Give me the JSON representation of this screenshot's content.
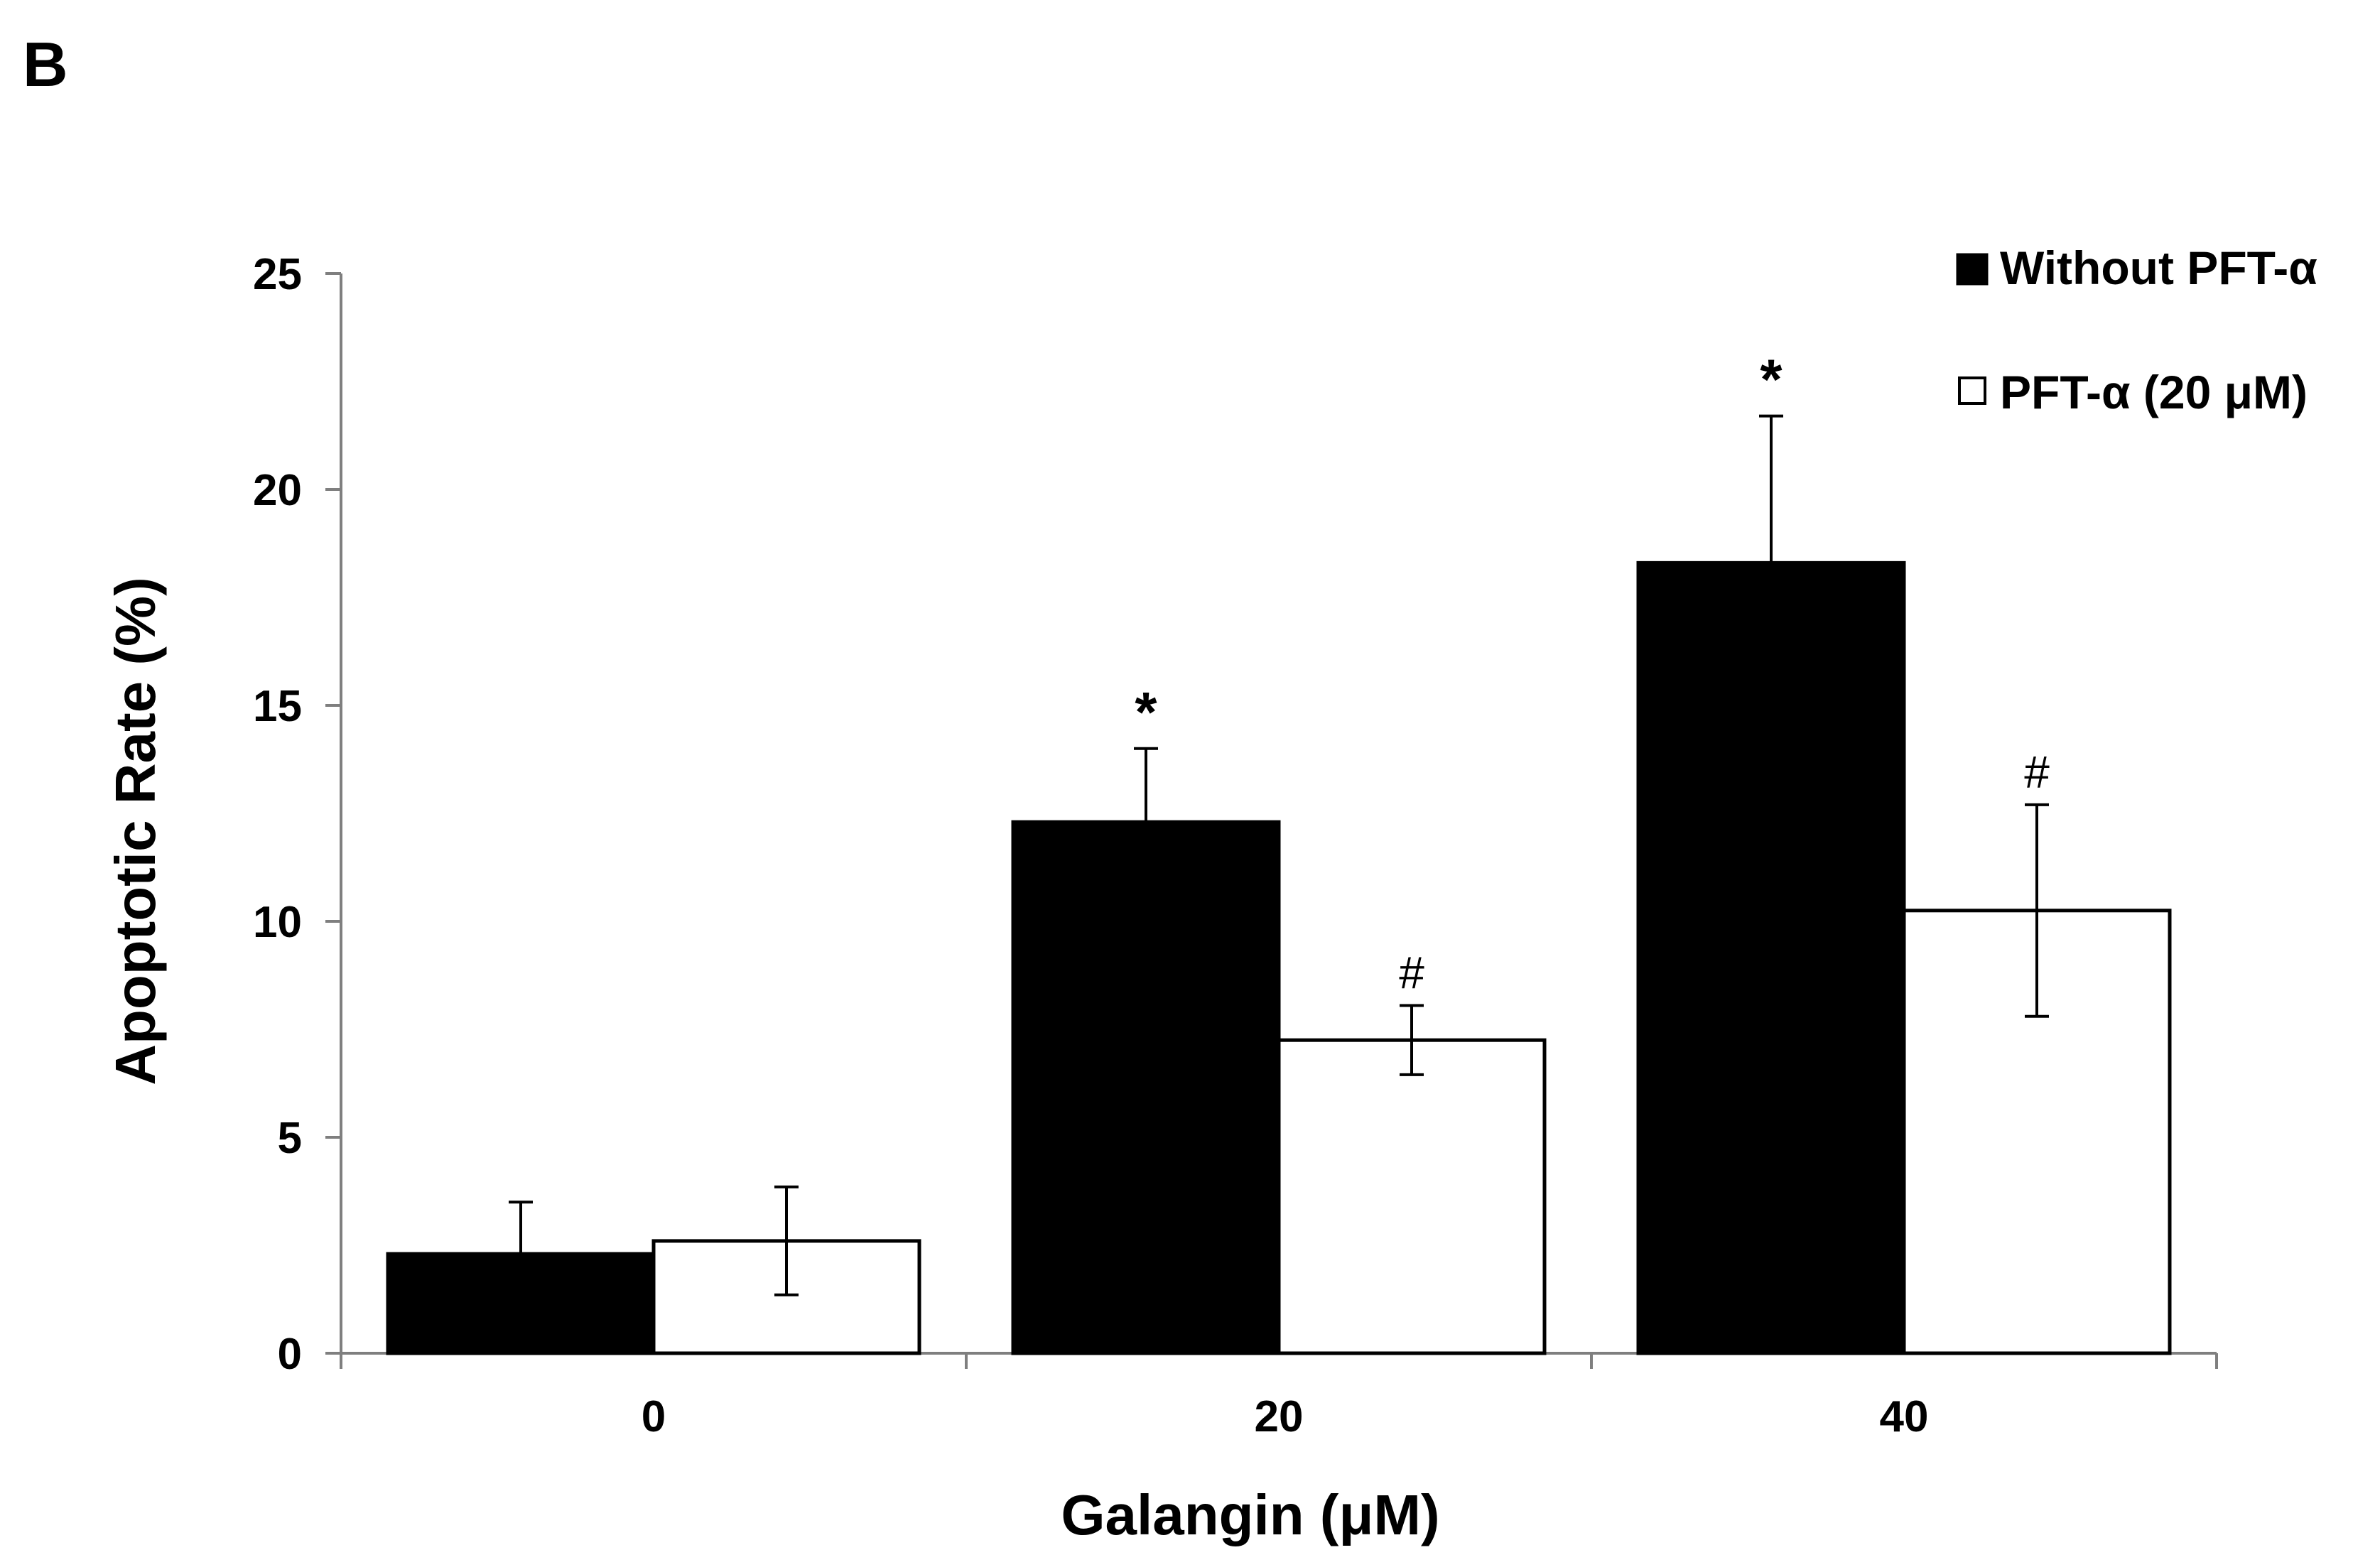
{
  "panel_label": "B",
  "chart_data": {
    "type": "bar",
    "title": "",
    "xlabel": "Galangin (μM)",
    "ylabel": "Apoptotic Rate (%)",
    "ylim": [
      0,
      25
    ],
    "yticks": [
      "0",
      "5",
      "10",
      "15",
      "20",
      "25"
    ],
    "categories": [
      "0",
      "20",
      "40"
    ],
    "legend_position": "top-right",
    "series": [
      {
        "name": "Without PFT-α",
        "fill": "#000000",
        "values": [
          2.3,
          12.3,
          18.3
        ],
        "errors": [
          1.2,
          1.7,
          3.4
        ],
        "annotations": [
          "",
          "*",
          "*"
        ]
      },
      {
        "name": "PFT-α (20 μM)",
        "fill": "#ffffff",
        "values": [
          2.6,
          7.25,
          10.25
        ],
        "errors": [
          1.25,
          0.8,
          2.45
        ],
        "annotations": [
          "",
          "#",
          "#"
        ]
      }
    ]
  }
}
